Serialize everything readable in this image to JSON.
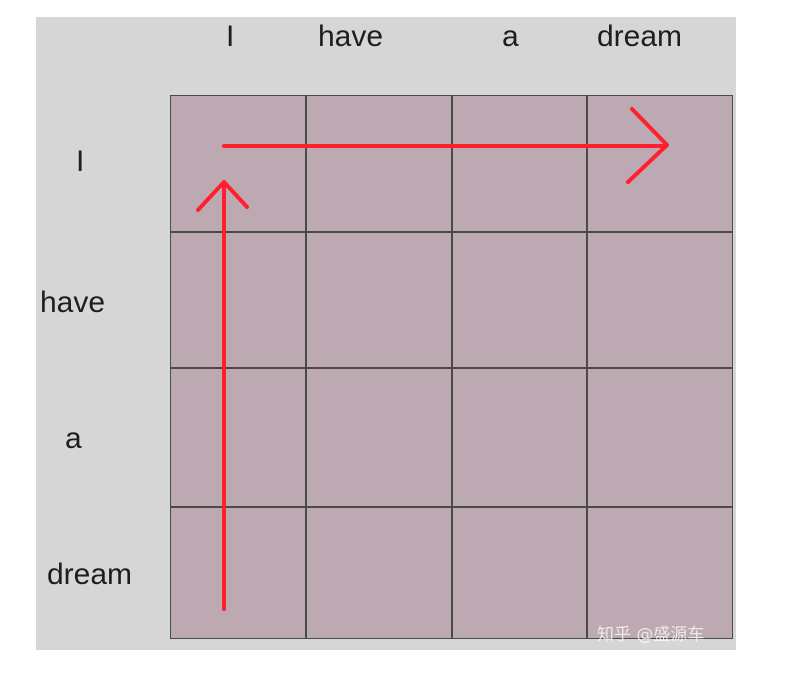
{
  "column_labels": [
    "I",
    "have",
    "a",
    "dream"
  ],
  "row_labels": [
    "I",
    "have",
    "a",
    "dream"
  ],
  "watermark": "知乎 @盛源车",
  "colors": {
    "background": "#d6d6d6",
    "cell_fill": "#bca9b2",
    "grid_lines": "#4a4a4a",
    "arrow": "#ff1f2d"
  },
  "arrows": [
    {
      "name": "vertical-arrow",
      "direction": "up"
    },
    {
      "name": "horizontal-arrow",
      "direction": "right"
    }
  ]
}
